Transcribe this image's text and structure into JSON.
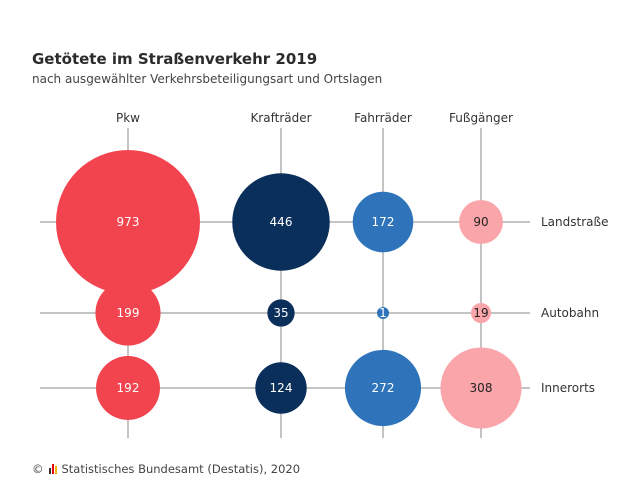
{
  "header": {
    "title": "Getötete im Straßenverkehr 2019",
    "subtitle": "nach ausgewählter Verkehrsbeteiligungsart und Ortslagen"
  },
  "footer": {
    "copyright": "©",
    "source": "Statistisches Bundesamt (Destatis), 2020"
  },
  "colors": {
    "Pkw": "#f2444f",
    "Krafträder": "#0b2f5b",
    "Fahrräder": "#2f74ba",
    "Fußgänger": "#f9a5a9",
    "grid": "#8a8a8a"
  },
  "chart_data": {
    "type": "bubble",
    "title": "Getötete im Straßenverkehr 2019",
    "subtitle": "nach ausgewählter Verkehrsbeteiligungsart und Ortslagen",
    "columns": [
      "Pkw",
      "Krafträder",
      "Fahrräder",
      "Fußgänger"
    ],
    "rows": [
      "Landstraße",
      "Autobahn",
      "Innerorts"
    ],
    "values": [
      [
        973,
        446,
        172,
        90
      ],
      [
        199,
        35,
        1,
        19
      ],
      [
        192,
        124,
        272,
        308
      ]
    ]
  }
}
